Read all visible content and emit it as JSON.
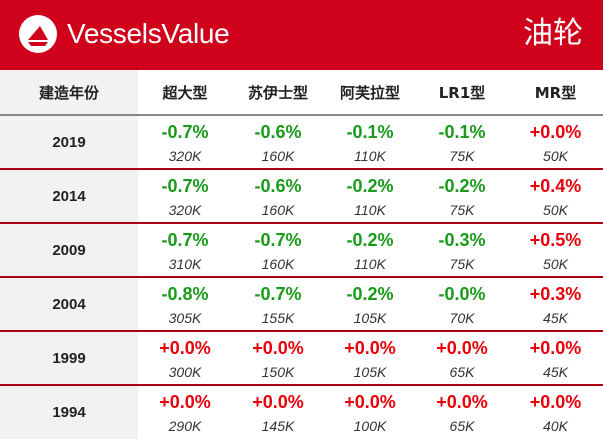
{
  "header": {
    "logo_text": "VesselsValue",
    "title": "油轮"
  },
  "colors": {
    "brand_red": "#d0021b",
    "negative_change": "#1a9a1a",
    "positive_change": "#e8000b"
  },
  "table": {
    "columns": [
      "建造年份",
      "超大型",
      "苏伊士型",
      "阿芙拉型",
      "LR1型",
      "MR型"
    ],
    "rows": [
      {
        "year": "2019",
        "cells": [
          {
            "change": "-0.7%",
            "value": "320K"
          },
          {
            "change": "-0.6%",
            "value": "160K"
          },
          {
            "change": "-0.1%",
            "value": "110K"
          },
          {
            "change": "-0.1%",
            "value": "75K"
          },
          {
            "change": "+0.0%",
            "value": "50K"
          }
        ]
      },
      {
        "year": "2014",
        "cells": [
          {
            "change": "-0.7%",
            "value": "320K"
          },
          {
            "change": "-0.6%",
            "value": "160K"
          },
          {
            "change": "-0.2%",
            "value": "110K"
          },
          {
            "change": "-0.2%",
            "value": "75K"
          },
          {
            "change": "+0.4%",
            "value": "50K"
          }
        ]
      },
      {
        "year": "2009",
        "cells": [
          {
            "change": "-0.7%",
            "value": "310K"
          },
          {
            "change": "-0.7%",
            "value": "160K"
          },
          {
            "change": "-0.2%",
            "value": "110K"
          },
          {
            "change": "-0.3%",
            "value": "75K"
          },
          {
            "change": "+0.5%",
            "value": "50K"
          }
        ]
      },
      {
        "year": "2004",
        "cells": [
          {
            "change": "-0.8%",
            "value": "305K"
          },
          {
            "change": "-0.7%",
            "value": "155K"
          },
          {
            "change": "-0.2%",
            "value": "105K"
          },
          {
            "change": "-0.0%",
            "value": "70K"
          },
          {
            "change": "+0.3%",
            "value": "45K"
          }
        ]
      },
      {
        "year": "1999",
        "cells": [
          {
            "change": "+0.0%",
            "value": "300K"
          },
          {
            "change": "+0.0%",
            "value": "150K"
          },
          {
            "change": "+0.0%",
            "value": "105K"
          },
          {
            "change": "+0.0%",
            "value": "65K"
          },
          {
            "change": "+0.0%",
            "value": "45K"
          }
        ]
      },
      {
        "year": "1994",
        "cells": [
          {
            "change": "+0.0%",
            "value": "290K"
          },
          {
            "change": "+0.0%",
            "value": "145K"
          },
          {
            "change": "+0.0%",
            "value": "100K"
          },
          {
            "change": "+0.0%",
            "value": "65K"
          },
          {
            "change": "+0.0%",
            "value": "40K"
          }
        ]
      }
    ]
  }
}
